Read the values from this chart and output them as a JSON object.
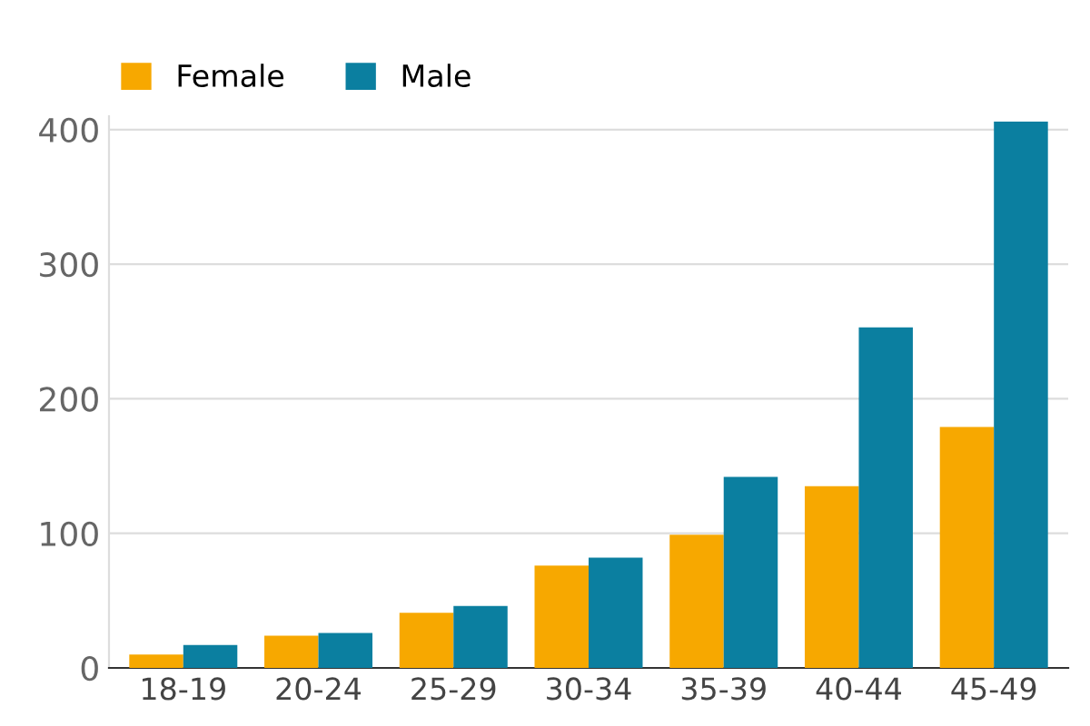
{
  "chart_data": {
    "type": "bar",
    "categories": [
      "18-19",
      "20-24",
      "25-29",
      "30-34",
      "35-39",
      "40-44",
      "45-49"
    ],
    "series": [
      {
        "name": "Female",
        "color": "#f7a800",
        "values": [
          10,
          24,
          41,
          76,
          99,
          135,
          179
        ]
      },
      {
        "name": "Male",
        "color": "#0b7fa0",
        "values": [
          17,
          26,
          46,
          82,
          142,
          253,
          406
        ]
      }
    ],
    "ylim": [
      0,
      410
    ],
    "yticks": [
      0,
      100,
      200,
      300,
      400
    ],
    "grid": "y",
    "legend": "top left"
  }
}
